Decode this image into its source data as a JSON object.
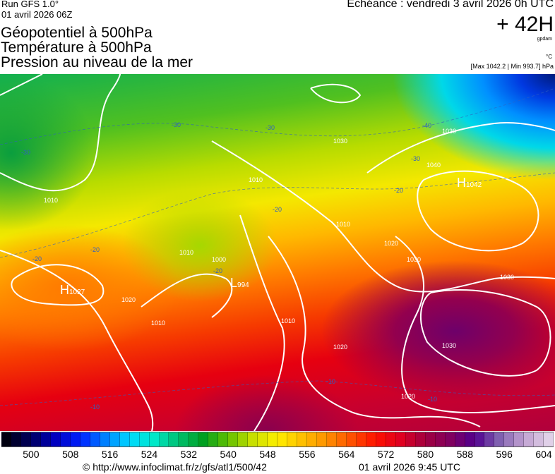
{
  "header": {
    "run": "Run GFS 1.0°",
    "run_date": "01 avril 2026 06Z",
    "titles": [
      "Géopotentiel à 500hPa",
      "Température à 500hPa",
      "Pression au niveau de la mer"
    ],
    "echeance": "Echéance : vendredi 3 avril 2026 0h UTC",
    "lead_time": "+ 42H",
    "unit_geopot": "gpdam",
    "unit_temp": "°C",
    "pressure_range": "[Max 1042.2 | Min 993.7] hPa"
  },
  "map": {
    "centers": [
      {
        "type": "H",
        "value": "1042"
      },
      {
        "type": "H",
        "value": "1027"
      },
      {
        "type": "L",
        "value": "994"
      }
    ],
    "isobar_labels": [
      "1010",
      "1020",
      "1010",
      "1010",
      "1000",
      "1030",
      "1020",
      "1030",
      "1040",
      "1030",
      "1030",
      "1030",
      "1020",
      "1020",
      "1010",
      "1010",
      "1010"
    ],
    "isotherm_labels": [
      "-30",
      "-30",
      "-30",
      "-40",
      "-30",
      "-20",
      "-20",
      "-20",
      "-20",
      "-10",
      "-10",
      "-10",
      "-20"
    ],
    "contour_color": "#ffffff",
    "isotherm_color": "#3060c0"
  },
  "colorbar": {
    "stops": [
      "#000010",
      "#000060",
      "#0000c0",
      "#0020ff",
      "#0080ff",
      "#00d8ff",
      "#00e8c8",
      "#00c070",
      "#00a020",
      "#60c000",
      "#c8e000",
      "#fff000",
      "#ffc000",
      "#ff9000",
      "#ff5000",
      "#ff1000",
      "#e00020",
      "#a00040",
      "#800060",
      "#500090",
      "#8060b0",
      "#c0a0d0",
      "#e0d0e8"
    ],
    "cell_count": 56,
    "ticks": [
      "500",
      "508",
      "516",
      "524",
      "532",
      "540",
      "548",
      "556",
      "564",
      "572",
      "580",
      "588",
      "596",
      "604"
    ]
  },
  "footer": {
    "url": "© http://www.infoclimat.fr/z/gfs/atl1/500/42",
    "date": "01 avril 2026  9:45 UTC"
  }
}
